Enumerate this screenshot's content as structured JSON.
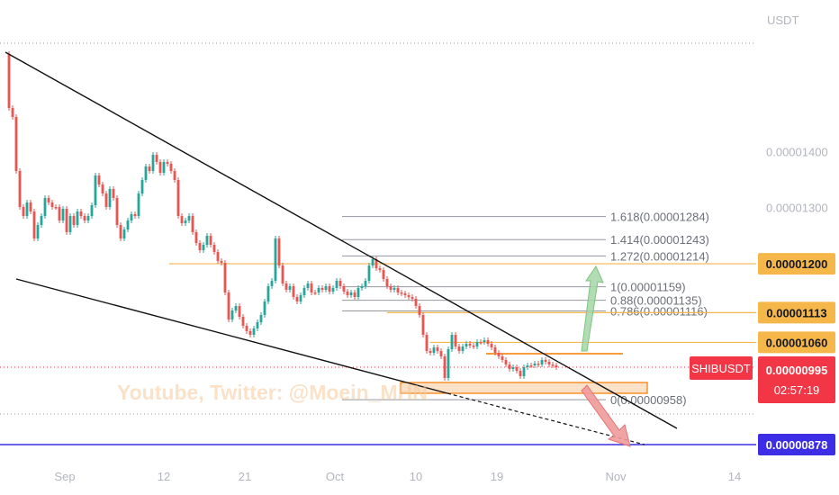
{
  "chart_data": {
    "type": "candlestick",
    "symbol": "SHIBUSDT",
    "currency_label": "USDT",
    "y_range": [
      8.6e-06,
      1.5e-05
    ],
    "y_ticks": [
      {
        "value": 1.3e-05,
        "label": "0.00001300"
      },
      {
        "value": 1.4e-05,
        "label": "0.00001400"
      }
    ],
    "x_ticks": [
      "Sep",
      "12",
      "21",
      "Oct",
      "10",
      "19",
      "Nov",
      "14"
    ],
    "price_tags": [
      {
        "value": 1.2e-05,
        "label": "0.00001200",
        "color": "#f5b64a",
        "text_color": "#131722"
      },
      {
        "value": 1.113e-05,
        "label": "0.00001113",
        "color": "#f5b64a",
        "text_color": "#131722"
      },
      {
        "value": 1.06e-05,
        "label": "0.00001060",
        "color": "#f5b64a",
        "text_color": "#131722"
      },
      {
        "value": 8.78e-06,
        "label": "0.00000878",
        "color": "#3d2ee6",
        "text_color": "#ffffff"
      }
    ],
    "current": {
      "label": "SHIBUSDT",
      "price": "0.00000995",
      "countdown": "02:57:19",
      "color": "#f23645"
    },
    "fib_levels": [
      {
        "label": "1.618(0.00001284)",
        "value": 1.284e-05
      },
      {
        "label": "1.414(0.00001243)",
        "value": 1.243e-05
      },
      {
        "label": "1.272(0.00001214)",
        "value": 1.214e-05
      },
      {
        "label": "1(0.00001159)",
        "value": 1.159e-05
      },
      {
        "label": "0.88(0.00001135)",
        "value": 1.135e-05
      },
      {
        "label": "0.786(0.00001116)",
        "value": 1.116e-05
      },
      {
        "label": "0(0.00000958)",
        "value": 9.58e-06
      }
    ],
    "watermark": "Youtube, Twitter: @Moein_MHN",
    "colors": {
      "up": "#26a69a",
      "down": "#ef5350",
      "level": "#f5b64a",
      "trendline": "#111111"
    }
  }
}
